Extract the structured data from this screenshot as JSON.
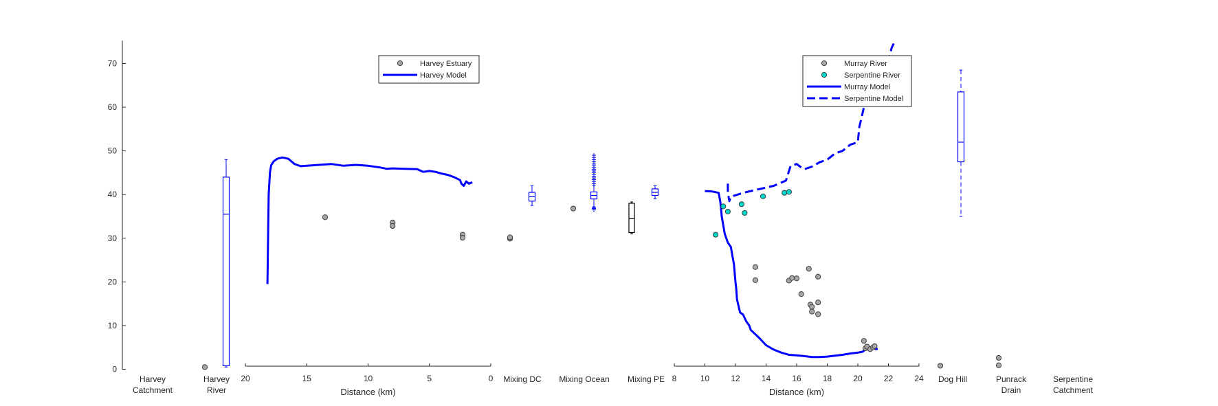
{
  "chart_data": {
    "type": "scatter",
    "ylim": [
      0,
      75
    ],
    "y_ticks": [
      "0",
      "10",
      "20",
      "30",
      "40",
      "50",
      "60",
      "70"
    ],
    "grid": false,
    "harvey_panel": {
      "xlabel": "Distance (km)",
      "x_ticks": [
        "20",
        "15",
        "10",
        "5",
        "0"
      ],
      "xlim": [
        20.5,
        0
      ],
      "legend": {
        "placement": "top",
        "entries": [
          "Harvey Estuary",
          "Harvey Model"
        ]
      },
      "series": [
        {
          "name": "Harvey Estuary",
          "kind": "points",
          "color": "#a6a6a6",
          "x": [
            13.5,
            8.0,
            8.0,
            2.3,
            2.3
          ],
          "y": [
            34.8,
            33.6,
            32.8,
            30.8,
            30.1
          ]
        },
        {
          "name": "Harvey Model",
          "kind": "line",
          "color": "#0000ff",
          "x": [
            18.2,
            18.15,
            18.1,
            18.0,
            17.9,
            17.7,
            17.4,
            17.0,
            16.5,
            16.0,
            15.5,
            15.0,
            14.0,
            13.0,
            12.0,
            11.0,
            10.0,
            9.0,
            8.5,
            8.0,
            7.0,
            6.0,
            5.5,
            5.0,
            4.5,
            4.0,
            3.5,
            3.0,
            2.5,
            2.4,
            2.2,
            2.0,
            1.8,
            1.5
          ],
          "y": [
            19.5,
            30.0,
            40.0,
            45.0,
            46.7,
            47.6,
            48.2,
            48.5,
            48.2,
            47.0,
            46.5,
            46.6,
            46.8,
            47.0,
            46.6,
            46.8,
            46.6,
            46.2,
            45.9,
            46.0,
            45.9,
            45.8,
            45.2,
            45.4,
            45.2,
            44.8,
            44.5,
            44.0,
            43.3,
            42.5,
            42.0,
            43.0,
            42.5,
            42.8
          ]
        }
      ]
    },
    "murray_panel": {
      "xlabel": "Distance (km)",
      "x_ticks": [
        "8",
        "10",
        "12",
        "14",
        "16",
        "18",
        "20",
        "22",
        "24"
      ],
      "xlim": [
        8,
        24
      ],
      "legend": {
        "placement": "top",
        "entries": [
          "Murray River",
          "Serpentine River",
          "Murray Model",
          "Serpentine Model"
        ]
      },
      "series": [
        {
          "name": "Murray River",
          "kind": "points",
          "color": "#a6a6a6",
          "x": [
            13.3,
            13.3,
            15.5,
            15.7,
            16.0,
            16.3,
            16.8,
            16.9,
            17.0,
            17.0,
            17.4,
            17.4,
            17.4,
            20.4,
            20.5,
            20.6,
            20.8,
            21.0,
            21.1
          ],
          "y": [
            23.4,
            20.4,
            20.3,
            20.9,
            20.8,
            17.2,
            23.0,
            14.8,
            14.3,
            13.2,
            21.2,
            15.3,
            12.6,
            6.5,
            4.8,
            5.2,
            4.6,
            5.0,
            5.3
          ]
        },
        {
          "name": "Serpentine River",
          "kind": "points",
          "color": "#00d9cc",
          "x": [
            10.7,
            11.2,
            11.5,
            12.4,
            12.6,
            13.8,
            15.2,
            15.5
          ],
          "y": [
            30.8,
            37.3,
            36.1,
            37.8,
            35.8,
            39.6,
            40.4,
            40.6
          ]
        },
        {
          "name": "Murray Model",
          "kind": "line",
          "color": "#0000ff",
          "x": [
            10.0,
            10.5,
            10.9,
            11.0,
            11.05,
            11.1,
            11.15,
            11.2,
            11.3,
            11.5,
            11.7,
            11.8,
            11.9,
            11.95,
            12.0,
            12.05,
            12.1,
            12.3,
            12.5,
            12.7,
            12.9,
            13.0,
            13.3,
            13.6,
            14.0,
            14.5,
            15.0,
            15.5,
            16.0,
            16.5,
            17.0,
            17.5,
            18.0,
            18.5,
            19.0,
            19.5,
            20.0,
            20.3,
            20.5,
            20.7,
            21.0,
            21.2,
            21.3
          ],
          "y": [
            40.8,
            40.7,
            40.4,
            38.5,
            37.0,
            35.0,
            34.0,
            33.0,
            31.0,
            29.0,
            28.0,
            26.0,
            24.0,
            22.0,
            20.0,
            18.5,
            16.0,
            13.0,
            12.5,
            11.0,
            10.0,
            9.0,
            8.0,
            7.0,
            5.5,
            4.5,
            3.8,
            3.3,
            3.2,
            3.0,
            2.8,
            2.8,
            2.9,
            3.1,
            3.3,
            3.6,
            3.8,
            4.0,
            4.5,
            4.8,
            5.0,
            4.6,
            4.7
          ]
        },
        {
          "name": "Serpentine Model",
          "kind": "line",
          "dash": "dashed",
          "color": "#0000ff",
          "x": [
            11.5,
            11.5,
            11.6,
            11.7,
            12.5,
            13.5,
            14.5,
            15.3,
            15.6,
            16.0,
            16.3,
            16.5,
            17.0,
            17.5,
            18.0,
            18.5,
            19.0,
            19.5,
            20.0,
            20.1,
            20.2,
            20.4,
            20.7,
            21.0,
            21.5,
            22.0,
            22.2,
            22.4
          ],
          "y": [
            42.5,
            40.5,
            38.5,
            39.5,
            40.4,
            41.2,
            42.0,
            43.2,
            46.5,
            47.0,
            46.2,
            45.8,
            46.4,
            47.4,
            48.0,
            49.4,
            50.0,
            51.4,
            52.0,
            55.5,
            57.0,
            60.0,
            65.0,
            67.2,
            68.0,
            70.5,
            73.5,
            75.0
          ]
        }
      ]
    },
    "boxplots": [
      {
        "name": "Harvey River",
        "color": "#0000ff",
        "whisker_low": 0.5,
        "q1": 0.8,
        "median": 35.5,
        "q3": 44.0,
        "whisker_high": 48.0,
        "outliers": []
      },
      {
        "name": "Mixing DC",
        "color": "#0000ff",
        "whisker_low": 37.5,
        "q1": 38.5,
        "median": 39.5,
        "q3": 40.5,
        "whisker_high": 42.0,
        "outliers": []
      },
      {
        "name": "Mixing Ocean",
        "color": "#0000ff",
        "whisker_low": 37.2,
        "q1": 39.0,
        "median": 39.8,
        "q3": 40.6,
        "whisker_high": 42.0,
        "outliers": [
          36.5,
          36.8,
          37.0,
          42.5,
          43.0,
          43.4,
          43.8,
          44.2,
          44.6,
          45.0,
          45.4,
          45.8,
          46.2,
          46.6,
          47.0,
          47.5,
          48.0,
          48.5,
          49.0
        ]
      },
      {
        "name": "Mixing PE",
        "color": "#000000",
        "whisker_low": 31.0,
        "q1": 31.3,
        "median": 34.5,
        "q3": 38.0,
        "whisker_high": 38.3,
        "outliers": []
      },
      {
        "name": "Mixing PE model",
        "color": "#0000ff",
        "whisker_low": 39.0,
        "q1": 39.8,
        "median": 40.5,
        "q3": 41.3,
        "whisker_high": 42.0,
        "outliers": []
      },
      {
        "name": "Dog Hill",
        "color": "#0000ff",
        "whisker_low": 35.0,
        "q1": 47.5,
        "median": 52.0,
        "q3": 63.5,
        "whisker_high": 68.5,
        "outliers": []
      }
    ],
    "site_points": [
      {
        "site": "Harvey River",
        "y": [
          0.5
        ]
      },
      {
        "site": "Mixing DC",
        "y": [
          29.9,
          30.2
        ]
      },
      {
        "site": "Mixing Ocean",
        "y": [
          36.8
        ]
      },
      {
        "site": "Dog Hill",
        "y": [
          0.8
        ]
      },
      {
        "site": "Punrack Drain",
        "y": [
          0.9,
          2.6
        ]
      }
    ],
    "category_labels": [
      {
        "line1": "Harvey",
        "line2": "Catchment"
      },
      {
        "line1": "Harvey",
        "line2": "River"
      },
      {
        "line1": "Mixing DC",
        "line2": ""
      },
      {
        "line1": "Mixing Ocean",
        "line2": ""
      },
      {
        "line1": "Mixing PE",
        "line2": ""
      },
      {
        "line1": "Dog Hill",
        "line2": ""
      },
      {
        "line1": "Punrack",
        "line2": "Drain"
      },
      {
        "line1": "Serpentine",
        "line2": "Catchment"
      }
    ]
  }
}
